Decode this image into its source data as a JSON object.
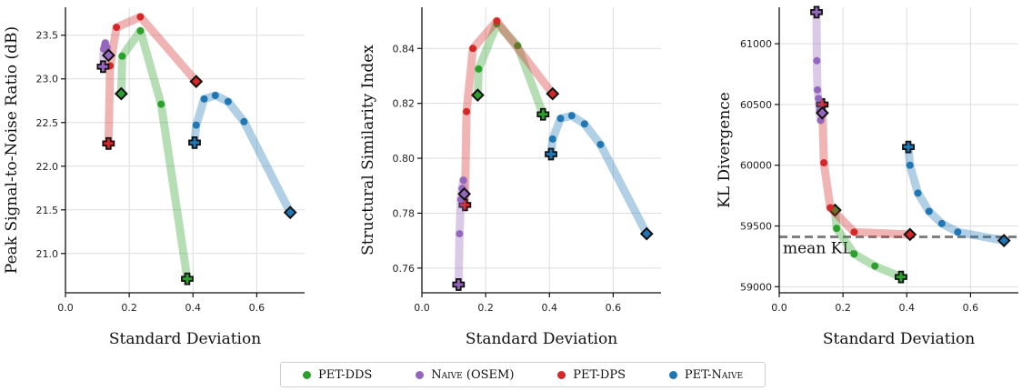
{
  "chart_data": [
    {
      "type": "line",
      "xlabel": "Standard Deviation",
      "ylabel": "Peak Signal-to-Noise Ratio (dB)",
      "xlim": [
        0,
        0.75
      ],
      "ylim": [
        20.55,
        23.82
      ],
      "xticks": [
        "0.0",
        "0.2",
        "0.4",
        "0.6"
      ],
      "xtick_values": [
        0,
        0.2,
        0.4,
        0.6
      ],
      "yticks": [
        "21.0",
        "21.5",
        "22.0",
        "22.5",
        "23.0",
        "23.5"
      ],
      "ytick_values": [
        21.0,
        21.5,
        22.0,
        22.5,
        23.0,
        23.5
      ],
      "series": [
        {
          "name": "PET-DDS",
          "x": [
            0.175,
            0.178,
            0.235,
            0.3,
            0.382
          ],
          "y": [
            22.83,
            23.26,
            23.55,
            22.71,
            20.71
          ],
          "start_marker": "diamond",
          "end_marker": "plus"
        },
        {
          "name": "Naive (OSEM)",
          "x": [
            0.118,
            0.12,
            0.123,
            0.125,
            0.13,
            0.135
          ],
          "y": [
            23.14,
            23.34,
            23.38,
            23.41,
            23.36,
            23.27
          ],
          "start_marker": "plus",
          "end_marker": "diamond"
        },
        {
          "name": "PET-DPS",
          "x": [
            0.135,
            0.14,
            0.16,
            0.235,
            0.41
          ],
          "y": [
            22.26,
            23.15,
            23.59,
            23.71,
            22.97
          ],
          "start_marker": "plus",
          "end_marker": "diamond"
        },
        {
          "name": "PET-Naive",
          "x": [
            0.405,
            0.41,
            0.435,
            0.47,
            0.51,
            0.56,
            0.705
          ],
          "y": [
            22.27,
            22.47,
            22.77,
            22.81,
            22.74,
            22.51,
            21.47
          ],
          "start_marker": "plus",
          "end_marker": "diamond"
        }
      ]
    },
    {
      "type": "line",
      "xlabel": "Standard Deviation",
      "ylabel": "Structural Similarity Index",
      "xlim": [
        0,
        0.75
      ],
      "ylim": [
        0.751,
        0.855
      ],
      "xticks": [
        "0.0",
        "0.2",
        "0.4",
        "0.6"
      ],
      "xtick_values": [
        0,
        0.2,
        0.4,
        0.6
      ],
      "yticks": [
        "0.76",
        "0.78",
        "0.80",
        "0.82",
        "0.84"
      ],
      "ytick_values": [
        0.76,
        0.78,
        0.8,
        0.82,
        0.84
      ],
      "series": [
        {
          "name": "PET-DDS",
          "x": [
            0.175,
            0.178,
            0.235,
            0.3,
            0.38
          ],
          "y": [
            0.823,
            0.8325,
            0.849,
            0.841,
            0.816
          ],
          "start_marker": "diamond",
          "end_marker": "plus"
        },
        {
          "name": "Naive (OSEM)",
          "x": [
            0.115,
            0.118,
            0.122,
            0.126,
            0.13,
            0.133
          ],
          "y": [
            0.754,
            0.7725,
            0.785,
            0.789,
            0.792,
            0.787
          ],
          "start_marker": "plus",
          "end_marker": "diamond"
        },
        {
          "name": "PET-DPS",
          "x": [
            0.135,
            0.14,
            0.16,
            0.235,
            0.41
          ],
          "y": [
            0.783,
            0.817,
            0.84,
            0.85,
            0.8235
          ],
          "start_marker": "plus",
          "end_marker": "diamond"
        },
        {
          "name": "PET-Naive",
          "x": [
            0.405,
            0.41,
            0.435,
            0.47,
            0.51,
            0.56,
            0.705
          ],
          "y": [
            0.8015,
            0.807,
            0.8145,
            0.8155,
            0.8125,
            0.805,
            0.7725
          ],
          "start_marker": "plus",
          "end_marker": "diamond"
        }
      ]
    },
    {
      "type": "line",
      "xlabel": "Standard Deviation",
      "ylabel": "KL Divergence",
      "xlim": [
        0,
        0.75
      ],
      "ylim": [
        58950,
        61300
      ],
      "xticks": [
        "0.0",
        "0.2",
        "0.4",
        "0.6"
      ],
      "xtick_values": [
        0,
        0.2,
        0.4,
        0.6
      ],
      "yticks": [
        "59000",
        "59500",
        "60000",
        "60500",
        "61000"
      ],
      "ytick_values": [
        59000,
        59500,
        60000,
        60500,
        61000
      ],
      "annotation": {
        "text": "mean KL",
        "y": 59410
      },
      "series": [
        {
          "name": "PET-DDS",
          "x": [
            0.175,
            0.18,
            0.235,
            0.3,
            0.382
          ],
          "y": [
            59630,
            59480,
            59270,
            59170,
            59080
          ],
          "start_marker": "diamond",
          "end_marker": "plus"
        },
        {
          "name": "Naive (OSEM)",
          "x": [
            0.117,
            0.118,
            0.12,
            0.123,
            0.127,
            0.13,
            0.135
          ],
          "y": [
            61260,
            60860,
            60620,
            60550,
            60450,
            60370,
            60430
          ],
          "start_marker": "plus",
          "end_marker": "diamond"
        },
        {
          "name": "PET-DPS",
          "x": [
            0.135,
            0.14,
            0.16,
            0.235,
            0.41
          ],
          "y": [
            60500,
            60020,
            59650,
            59450,
            59430
          ],
          "start_marker": "plus",
          "end_marker": "diamond"
        },
        {
          "name": "PET-Naive",
          "x": [
            0.405,
            0.41,
            0.435,
            0.47,
            0.51,
            0.56,
            0.705
          ],
          "y": [
            60150,
            60000,
            59770,
            59620,
            59520,
            59450,
            59380
          ],
          "start_marker": "plus",
          "end_marker": "diamond"
        }
      ]
    }
  ],
  "legend": [
    {
      "label": "PET-DDS",
      "color": "#2ca02c"
    },
    {
      "label": "Naive (OSEM)",
      "color": "#9467bd"
    },
    {
      "label": "PET-DPS",
      "color": "#d62728"
    },
    {
      "label": "PET-Naive",
      "color": "#1f77b4"
    }
  ],
  "colors": {
    "PET-DDS": "#2ca02c",
    "Naive (OSEM)": "#9467bd",
    "PET-DPS": "#d62728",
    "PET-Naive": "#1f77b4",
    "grid": "#dddddd",
    "mean_line": "#808080"
  }
}
